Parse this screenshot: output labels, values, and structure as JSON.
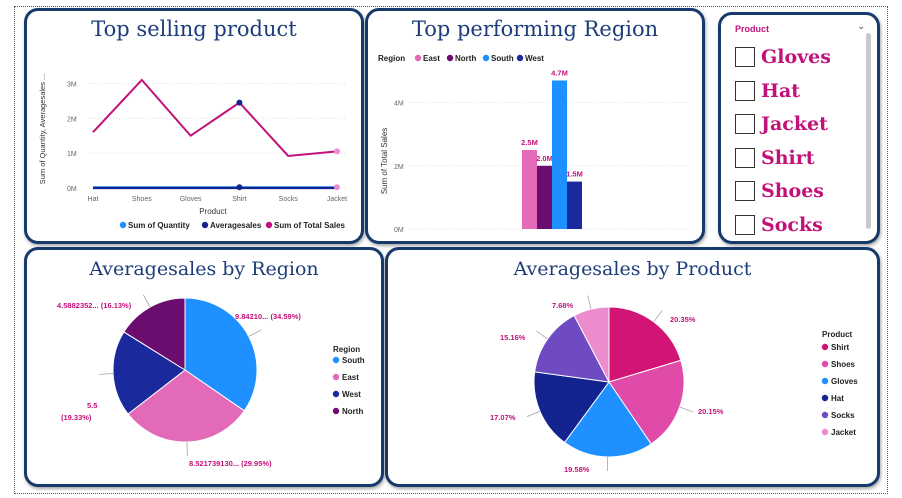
{
  "colors": {
    "border": "#163a6b",
    "title": "#1c3d7a",
    "accent": "#c2127a",
    "East": "#e26ab8",
    "North": "#6a0d6e",
    "South": "#1e90ff",
    "West": "#1a2a9c",
    "Shirt": "#d11476",
    "Shoes": "#e04aa8",
    "Gloves": "#1e90ff",
    "Hat": "#13238f",
    "Socks": "#6f4bc3",
    "Jacket": "#ec8ccc"
  },
  "top_selling": {
    "title": "Top selling product",
    "chart_data": {
      "type": "line",
      "categories": [
        "Hat",
        "Shoes",
        "Gloves",
        "Shirt",
        "Socks",
        "Jacket"
      ],
      "series": [
        {
          "name": "Sum of Quantity",
          "values": [
            0.02,
            0.02,
            0.02,
            0.02,
            0.02,
            0.02
          ],
          "color": "#1e90ff"
        },
        {
          "name": "Averagesales",
          "values": [
            1e-05,
            1e-05,
            1e-05,
            1e-05,
            1e-05,
            1e-05
          ],
          "color": "#13238f"
        },
        {
          "name": "Sum of Total Sales",
          "values": [
            1.6,
            3.1,
            1.5,
            2.45,
            0.92,
            1.05
          ],
          "color": "#c2127a"
        }
      ],
      "xlabel": "Product",
      "ylabel": "Sum of Quantity, Averagesales ...",
      "yticks": [
        "0M",
        "1M",
        "2M",
        "3M"
      ],
      "ylim": [
        0,
        3.3
      ]
    },
    "legend": [
      "Sum of Quantity",
      "Averagesales",
      "Sum of Total Sales"
    ]
  },
  "top_region": {
    "title": "Top performing Region",
    "legend_title": "Region",
    "legend": [
      "East",
      "North",
      "South",
      "West"
    ],
    "chart_data": {
      "type": "bar",
      "categories": [
        "East",
        "North",
        "South",
        "West"
      ],
      "values": [
        2.5,
        2.0,
        4.7,
        1.5
      ],
      "labels": [
        "2.5M",
        "2.0M",
        "4.7M",
        "1.5M"
      ],
      "ylabel": "Sum of Total Sales",
      "yticks": [
        "0M",
        "2M",
        "4M"
      ],
      "ylim": [
        0,
        5
      ]
    }
  },
  "slicer": {
    "title": "Product",
    "chevron": "⌄",
    "items": [
      "Gloves",
      "Hat",
      "Jacket",
      "Shirt",
      "Shoes",
      "Socks"
    ]
  },
  "region_pie": {
    "title": "Averagesales by Region",
    "legend_title": "Region",
    "chart_data": {
      "type": "pie",
      "categories": [
        "South",
        "East",
        "West",
        "North"
      ],
      "values": [
        34.59,
        29.95,
        19.33,
        16.13
      ],
      "labels": [
        "9.84210... (34.59%)",
        "8.521739130... (29.95%)",
        "5.5 (19.33%)",
        "4.5882352... (16.13%)"
      ]
    },
    "label_west_value": "5.5",
    "label_west_pct": "(19.33%)"
  },
  "product_pie": {
    "title": "Averagesales by Product",
    "legend_title": "Product",
    "chart_data": {
      "type": "pie",
      "categories": [
        "Shirt",
        "Shoes",
        "Gloves",
        "Hat",
        "Socks",
        "Jacket"
      ],
      "values": [
        20.35,
        20.15,
        19.58,
        17.07,
        15.16,
        7.68
      ],
      "labels": [
        "20.35%",
        "20.15%",
        "19.58%",
        "17.07%",
        "15.16%",
        "7.68%"
      ]
    }
  }
}
